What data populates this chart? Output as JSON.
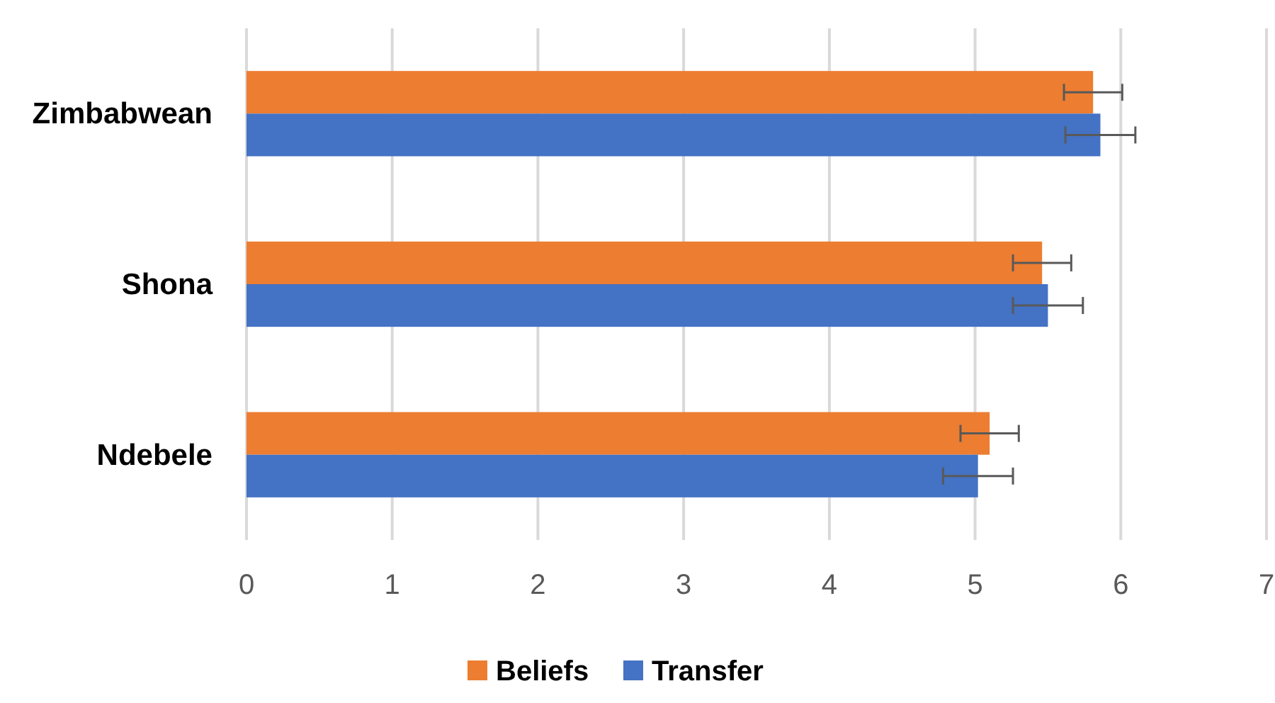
{
  "chart_data": {
    "type": "bar",
    "orientation": "horizontal",
    "categories": [
      "Zimbabwean",
      "Shona",
      "Ndebele"
    ],
    "series": [
      {
        "name": "Beliefs",
        "color": "#ed7d31",
        "values": [
          5.81,
          5.46,
          5.1
        ],
        "errors": [
          0.2,
          0.2,
          0.2
        ]
      },
      {
        "name": "Transfer",
        "color": "#4472c4",
        "values": [
          5.86,
          5.5,
          5.02
        ],
        "errors": [
          0.24,
          0.24,
          0.24
        ]
      }
    ],
    "xlim": [
      0,
      7
    ],
    "xticks": [
      0,
      1,
      2,
      3,
      4,
      5,
      6,
      7
    ],
    "grid": "x",
    "legend": "bottom"
  }
}
